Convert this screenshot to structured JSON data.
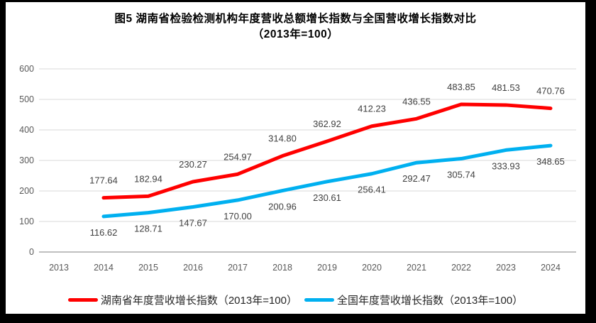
{
  "chart_title": {
    "line1": "图5 湖南省检验检测机构年度营收总额增长指数与全国营收增长指数对比",
    "line2": "（2013年=100）"
  },
  "chart_data": {
    "type": "line",
    "title": "图5 湖南省检验检测机构年度营收总额增长指数与全国营收增长指数对比（2013年=100）",
    "x_categories": [
      2013,
      2014,
      2015,
      2016,
      2017,
      2018,
      2019,
      2020,
      2021,
      2022,
      2023,
      2024
    ],
    "series": [
      {
        "name": "湖南省年度营收增长指数（2013年=100）",
        "color": "#FF0000",
        "start_year": 2014,
        "label_side": "above",
        "values": [
          177.64,
          182.94,
          230.27,
          254.97,
          314.8,
          362.92,
          412.23,
          436.55,
          483.85,
          481.53,
          470.76
        ]
      },
      {
        "name": "全国年度营收增长指数（2013年=100）",
        "color": "#00B0F0",
        "start_year": 2014,
        "label_side": "below",
        "values": [
          116.62,
          128.71,
          147.67,
          170.0,
          200.96,
          230.61,
          256.41,
          292.47,
          305.74,
          333.93,
          348.65
        ]
      }
    ],
    "y_ticks": [
      0,
      100,
      200,
      300,
      400,
      500,
      600
    ],
    "ylim": [
      0,
      600
    ],
    "grid": true,
    "legend_position": "bottom",
    "colors": {
      "gridline": "#D9D9D9",
      "axis_line": "#BFBFBF",
      "axis_text": "#595959",
      "data_label_text": "#404040"
    }
  }
}
